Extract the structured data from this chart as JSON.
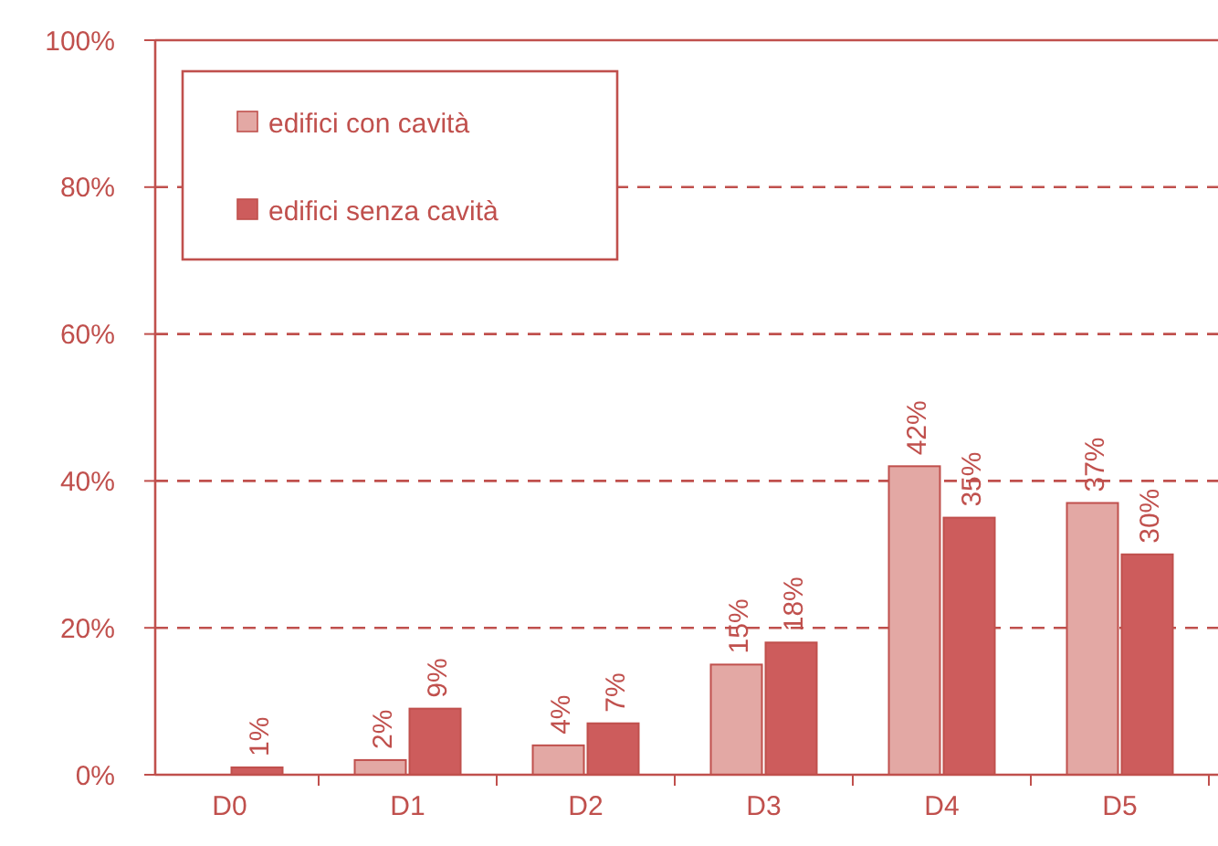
{
  "chart_data": {
    "type": "bar",
    "categories": [
      "D0",
      "D1",
      "D2",
      "D3",
      "D4",
      "D5"
    ],
    "series": [
      {
        "name": "edifici con cavità",
        "color": "#e3a8a4",
        "values": [
          null,
          2,
          4,
          15,
          42,
          37
        ],
        "value_labels": [
          null,
          "2%",
          "4%",
          "15%",
          "42%",
          "37%"
        ]
      },
      {
        "name": "edifici senza cavità",
        "color": "#cd5c5c",
        "values": [
          1,
          9,
          7,
          18,
          35,
          30
        ],
        "value_labels": [
          "1%",
          "9%",
          "7%",
          "18%",
          "35%",
          "30%"
        ]
      }
    ],
    "ylim": [
      0,
      100
    ],
    "yticks": [
      {
        "value": 0,
        "label": "0%"
      },
      {
        "value": 20,
        "label": "20%"
      },
      {
        "value": 40,
        "label": "40%"
      },
      {
        "value": 60,
        "label": "60%"
      },
      {
        "value": 80,
        "label": "80%"
      },
      {
        "value": 100,
        "label": "100%"
      }
    ],
    "grid": "y",
    "legend": "top left"
  }
}
